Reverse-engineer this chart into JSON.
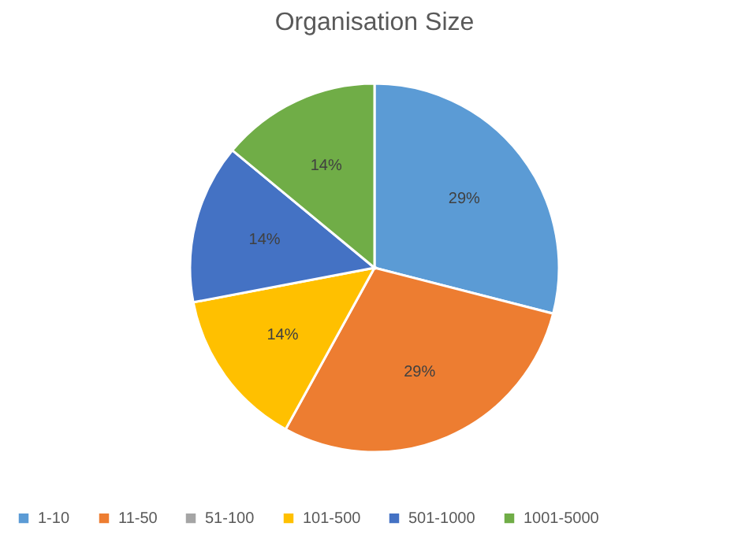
{
  "chart_data": {
    "type": "pie",
    "title": "Organisation Size",
    "categories": [
      "1-10",
      "11-50",
      "51-100",
      "101-500",
      "501-1000",
      "1001-5000"
    ],
    "values": [
      29,
      29,
      0,
      14,
      14,
      14
    ],
    "colors": [
      "#5b9bd5",
      "#ed7d31",
      "#a5a5a5",
      "#ffc000",
      "#4472c4",
      "#70ad47"
    ],
    "value_labels": [
      "29%",
      "29%",
      null,
      "14%",
      "14%",
      "14%"
    ],
    "legend": "bottom"
  }
}
